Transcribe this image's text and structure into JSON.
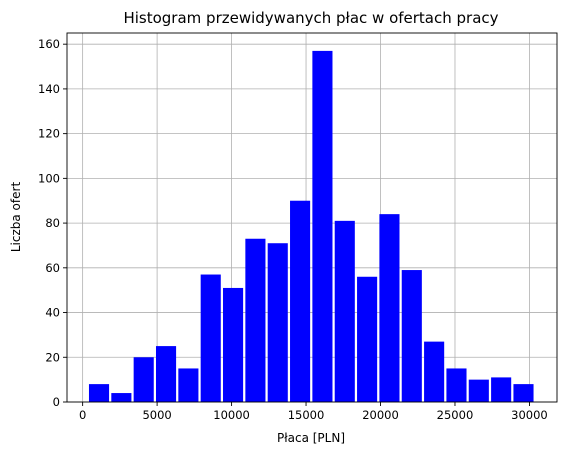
{
  "chart_data": {
    "type": "bar",
    "title": "Histogram przewidywanych płac w ofertach pracy",
    "xlabel": "Płaca [PLN]",
    "ylabel": "Liczba ofert",
    "bar_color": "#0000ff",
    "grid": true,
    "xlim": [
      -1050,
      31850
    ],
    "ylim": [
      0,
      165
    ],
    "xticks": [
      0,
      5000,
      10000,
      15000,
      20000,
      25000,
      30000
    ],
    "yticks": [
      0,
      20,
      40,
      60,
      80,
      100,
      120,
      140,
      160
    ],
    "bins": [
      {
        "x": 1100,
        "value": 8
      },
      {
        "x": 2600,
        "value": 4
      },
      {
        "x": 4100,
        "value": 20
      },
      {
        "x": 5600,
        "value": 25
      },
      {
        "x": 7100,
        "value": 15
      },
      {
        "x": 8600,
        "value": 57
      },
      {
        "x": 10100,
        "value": 51
      },
      {
        "x": 11600,
        "value": 73
      },
      {
        "x": 13100,
        "value": 71
      },
      {
        "x": 14600,
        "value": 90
      },
      {
        "x": 16100,
        "value": 157
      },
      {
        "x": 17600,
        "value": 81
      },
      {
        "x": 19100,
        "value": 56
      },
      {
        "x": 20600,
        "value": 84
      },
      {
        "x": 22100,
        "value": 59
      },
      {
        "x": 23600,
        "value": 27
      },
      {
        "x": 25100,
        "value": 15
      },
      {
        "x": 26600,
        "value": 10
      },
      {
        "x": 28100,
        "value": 11
      },
      {
        "x": 29600,
        "value": 8
      }
    ]
  }
}
